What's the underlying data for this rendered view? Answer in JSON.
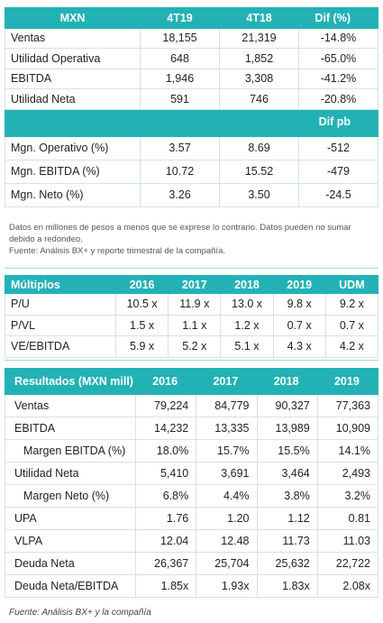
{
  "table1": {
    "header": [
      "MXN",
      "4T19",
      "4T18",
      "Dif (%)"
    ],
    "rows": [
      [
        "Ventas",
        "18,155",
        "21,319",
        "-14.8%"
      ],
      [
        "Utilidad Operativa",
        "648",
        "1,852",
        "-65.0%"
      ],
      [
        "EBITDA",
        "1,946",
        "3,308",
        "-41.2%"
      ],
      [
        "Utilidad Neta",
        "591",
        "746",
        "-20.8%"
      ]
    ],
    "subheader": "Dif pb",
    "rows2": [
      [
        "Mgn. Operativo (%)",
        "3.57",
        "8.69",
        "-512"
      ],
      [
        "Mgn. EBITDA (%)",
        "10.72",
        "15.52",
        "-479"
      ],
      [
        "Mgn. Neto (%)",
        "3.26",
        "3.50",
        "-24.5"
      ]
    ]
  },
  "note": [
    "Datos en millones de pesos a menos que se exprese lo contrario. Datos pueden no sumar debido a redondeo.",
    "Fuente: Análisis BX+ y reporte trimestral de la compañía."
  ],
  "table2": {
    "header": [
      "Múltiplos",
      "2016",
      "2017",
      "2018",
      "2019",
      "UDM"
    ],
    "rows": [
      [
        "P/U",
        "10.5 x",
        "11.9 x",
        "13.0 x",
        "9.8 x",
        "9.2 x"
      ],
      [
        "P/VL",
        "1.5 x",
        "1.1 x",
        "1.2 x",
        "0.7 x",
        "0.7 x"
      ],
      [
        "VE/EBITDA",
        "5.9 x",
        "5.2 x",
        "5.1 x",
        "4.3 x",
        "4.2 x"
      ]
    ]
  },
  "table3": {
    "header": [
      "Resultados (MXN mill)",
      "2016",
      "2017",
      "2018",
      "2019"
    ],
    "rows": [
      [
        "Ventas",
        "79,224",
        "84,779",
        "90,327",
        "77,363"
      ],
      [
        "EBITDA",
        "14,232",
        "13,335",
        "13,989",
        "10,909"
      ],
      [
        "Margen EBITDA (%)",
        "18.0%",
        "15.7%",
        "15.5%",
        "14.1%"
      ],
      [
        "Utilidad Neta",
        "5,410",
        "3,691",
        "3,464",
        "2,493"
      ],
      [
        "Margen Neto (%)",
        "6.8%",
        "4.4%",
        "3.8%",
        "3.2%"
      ],
      [
        "UPA",
        "1.76",
        "1.20",
        "1.12",
        "0.81"
      ],
      [
        "VLPA",
        "12.04",
        "12.48",
        "11.73",
        "11.03"
      ],
      [
        "Deuda Neta",
        "26,367",
        "25,704",
        "25,632",
        "22,722"
      ],
      [
        "Deuda Neta/EBITDA",
        "1.85x",
        "1.93x",
        "1.83x",
        "2.08x"
      ]
    ]
  },
  "footer": "Fuente: Análisis BX+ y la compañía"
}
